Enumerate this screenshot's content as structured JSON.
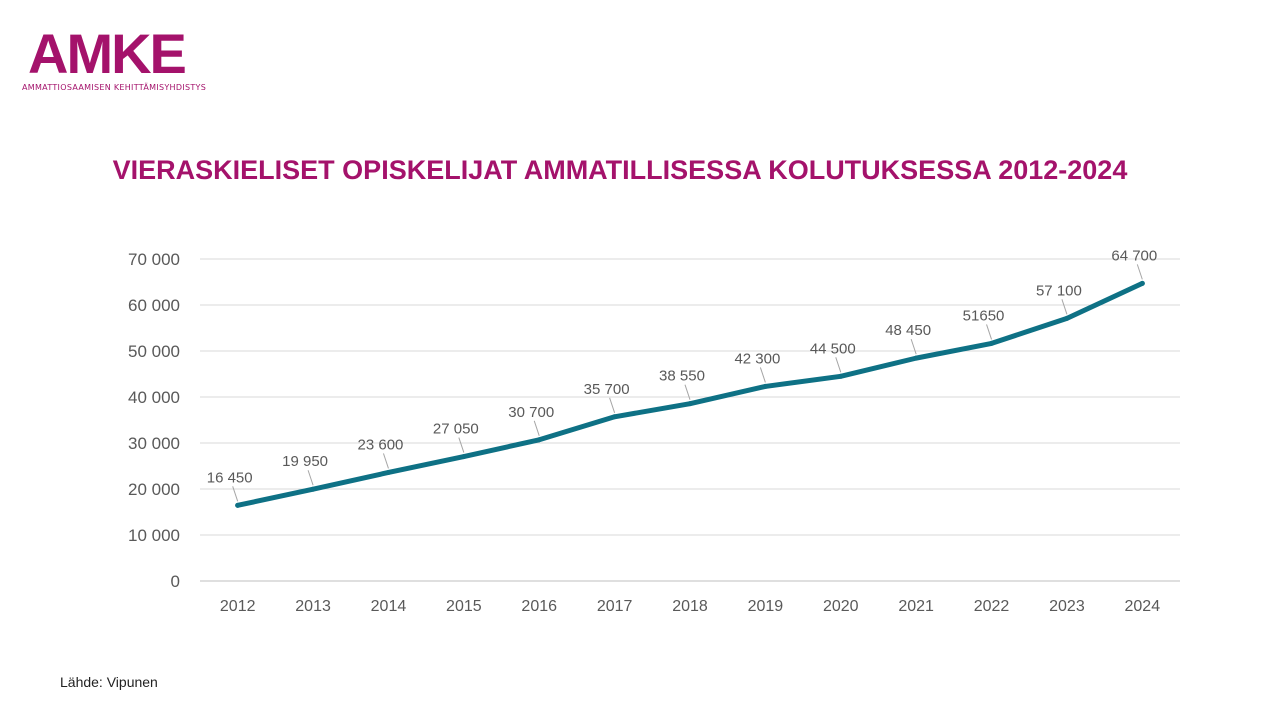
{
  "logo": {
    "wordmark": "AMKE",
    "subtitle": "AMMATTIOSAAMISEN KEHITTÄMISYHDISTYS"
  },
  "title": "VIERASKIELISET OPISKELIJAT AMMATILLISESSA KOLUTUKSESSA 2012-2024",
  "source": "Lähde: Vipunen",
  "colors": {
    "brand": "#a4126b",
    "series": "#0e7185",
    "grid": "#d9d9d9",
    "tick_text": "#595959"
  },
  "chart_data": {
    "type": "line",
    "categories": [
      "2012",
      "2013",
      "2014",
      "2015",
      "2016",
      "2017",
      "2018",
      "2019",
      "2020",
      "2021",
      "2022",
      "2023",
      "2024"
    ],
    "values": [
      16450,
      19950,
      23600,
      27050,
      30700,
      35700,
      38550,
      42300,
      44500,
      48450,
      51650,
      57100,
      64700
    ],
    "data_labels": [
      "16 450",
      "19 950",
      "23 600",
      "27 050",
      "30 700",
      "35 700",
      "38 550",
      "42 300",
      "44 500",
      "48 450",
      "51650",
      "57 100",
      "64 700"
    ],
    "y_ticks": [
      "0",
      "10 000",
      "20 000",
      "30 000",
      "40 000",
      "50 000",
      "60 000",
      "70 000"
    ],
    "ylim": [
      0,
      70000
    ],
    "grid": true,
    "legend": false,
    "xlabel": "",
    "ylabel": ""
  }
}
